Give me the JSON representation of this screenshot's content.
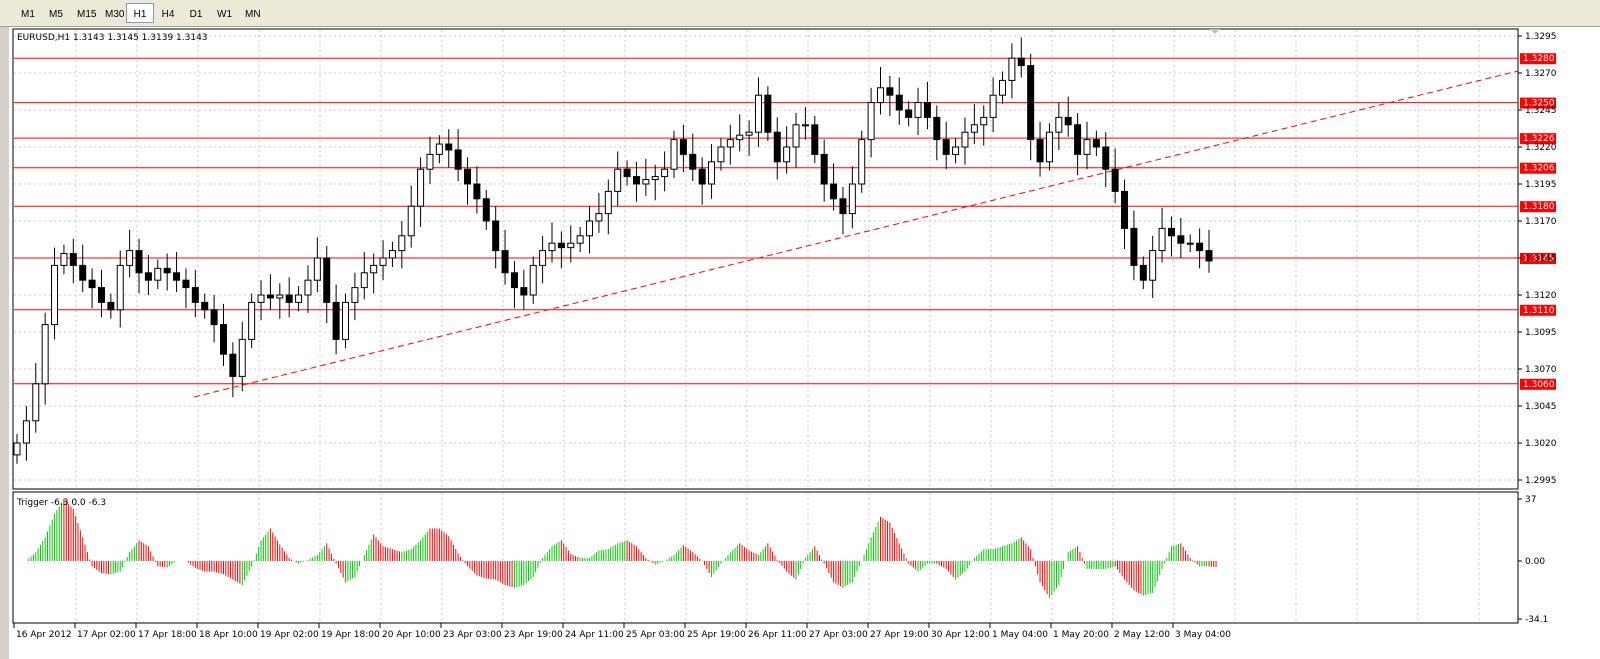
{
  "toolbar": {
    "timeframes": [
      "M1",
      "M5",
      "M15",
      "M30",
      "H1",
      "H4",
      "D1",
      "W1",
      "MN"
    ],
    "active": "H1"
  },
  "chart": {
    "title": "EURUSD,H1  1.3143 1.3145 1.3139 1.3143",
    "price_axis": [
      "1.3295",
      "1.3270",
      "1.3245",
      "1.3220",
      "1.3195",
      "1.3170",
      "1.3145",
      "1.3120",
      "1.3095",
      "1.3070",
      "1.3045",
      "1.3020",
      "1.2995"
    ],
    "levels": [
      "1.3280",
      "1.3250",
      "1.3226",
      "1.3206",
      "1.3180",
      "1.3145",
      "1.3110",
      "1.3060"
    ],
    "time_axis": [
      "16 Apr 2012",
      "17 Apr 02:00",
      "17 Apr 18:00",
      "18 Apr 10:00",
      "19 Apr 02:00",
      "19 Apr 18:00",
      "20 Apr 10:00",
      "23 Apr 03:00",
      "23 Apr 19:00",
      "24 Apr 11:00",
      "25 Apr 03:00",
      "25 Apr 19:00",
      "26 Apr 11:00",
      "27 Apr 03:00",
      "27 Apr 19:00",
      "30 Apr 12:00",
      "1 May 04:00",
      "1 May 20:00",
      "2 May 12:00",
      "3 May 04:00"
    ]
  },
  "indicator": {
    "title": "Trigger -6.3 0.0 -6.3",
    "axis": [
      "37",
      "0.00",
      "-34.1"
    ]
  },
  "colors": {
    "level_line": "#ff0000",
    "trend_line": "#ff0000",
    "bull_candle": "#ffffff",
    "bear_candle": "#000000",
    "hist_pos": "#00cc00",
    "hist_neg": "#ff0000"
  },
  "chart_data": {
    "type": "candlestick",
    "symbol": "EURUSD",
    "timeframe": "H1",
    "ylim": [
      1.2995,
      1.3295
    ],
    "horizontal_levels": [
      1.328,
      1.325,
      1.3226,
      1.3206,
      1.318,
      1.3145,
      1.311,
      1.306
    ],
    "close_series": [
      1.302,
      1.3035,
      1.306,
      1.31,
      1.314,
      1.3148,
      1.314,
      1.313,
      1.3125,
      1.3115,
      1.311,
      1.314,
      1.315,
      1.3135,
      1.313,
      1.3138,
      1.3135,
      1.313,
      1.3125,
      1.3115,
      1.311,
      1.31,
      1.308,
      1.3065,
      1.309,
      1.3115,
      1.312,
      1.3118,
      1.312,
      1.3115,
      1.312,
      1.313,
      1.3145,
      1.3115,
      1.309,
      1.3115,
      1.3125,
      1.3135,
      1.314,
      1.3145,
      1.315,
      1.316,
      1.318,
      1.3205,
      1.3215,
      1.3222,
      1.3218,
      1.3205,
      1.3195,
      1.3185,
      1.317,
      1.315,
      1.3135,
      1.3125,
      1.312,
      1.314,
      1.315,
      1.3155,
      1.3152,
      1.3155,
      1.316,
      1.317,
      1.3175,
      1.319,
      1.3205,
      1.32,
      1.3195,
      1.3198,
      1.32,
      1.3205,
      1.3225,
      1.3215,
      1.3205,
      1.3195,
      1.321,
      1.322,
      1.3225,
      1.3228,
      1.323,
      1.3255,
      1.323,
      1.321,
      1.322,
      1.3235,
      1.3235,
      1.3215,
      1.3195,
      1.3185,
      1.3175,
      1.3195,
      1.3225,
      1.325,
      1.326,
      1.3255,
      1.3245,
      1.324,
      1.325,
      1.324,
      1.3225,
      1.3215,
      1.322,
      1.323,
      1.3235,
      1.324,
      1.3255,
      1.3265,
      1.328,
      1.3275,
      1.3225,
      1.321,
      1.323,
      1.324,
      1.3235,
      1.3215,
      1.3225,
      1.322,
      1.3205,
      1.319,
      1.3165,
      1.314,
      1.313,
      1.315,
      1.3165,
      1.316,
      1.3155,
      1.3155,
      1.315,
      1.3143
    ]
  }
}
